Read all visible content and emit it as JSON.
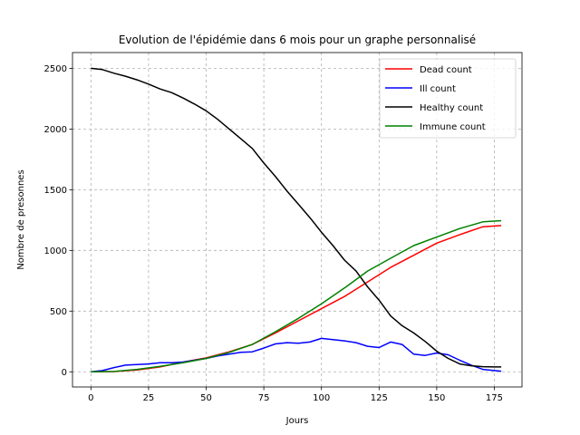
{
  "chart_data": {
    "type": "line",
    "title": "Evolution de l'épidémie dans 6 mois pour un graphe personnalisé",
    "xlabel": "Jours",
    "ylabel": "Nombre de presonnes",
    "xlim": [
      -8,
      187
    ],
    "ylim": [
      -125,
      2630
    ],
    "xticks": [
      0,
      25,
      50,
      75,
      100,
      125,
      150,
      175
    ],
    "yticks": [
      0,
      500,
      1000,
      1500,
      2000,
      2500
    ],
    "grid": true,
    "legend_position": "top-right",
    "series": [
      {
        "name": "Dead count",
        "color": "#ff0000",
        "points": [
          [
            0,
            0
          ],
          [
            10,
            2
          ],
          [
            20,
            15
          ],
          [
            30,
            40
          ],
          [
            40,
            80
          ],
          [
            50,
            115
          ],
          [
            60,
            165
          ],
          [
            70,
            225
          ],
          [
            80,
            320
          ],
          [
            90,
            420
          ],
          [
            100,
            520
          ],
          [
            110,
            620
          ],
          [
            120,
            740
          ],
          [
            130,
            860
          ],
          [
            140,
            960
          ],
          [
            150,
            1060
          ],
          [
            160,
            1130
          ],
          [
            170,
            1195
          ],
          [
            178,
            1205
          ]
        ]
      },
      {
        "name": "Ill count",
        "color": "#0000ff",
        "points": [
          [
            0,
            0
          ],
          [
            5,
            10
          ],
          [
            10,
            35
          ],
          [
            15,
            55
          ],
          [
            20,
            60
          ],
          [
            25,
            65
          ],
          [
            30,
            75
          ],
          [
            35,
            75
          ],
          [
            40,
            80
          ],
          [
            45,
            95
          ],
          [
            50,
            110
          ],
          [
            55,
            130
          ],
          [
            60,
            145
          ],
          [
            65,
            160
          ],
          [
            70,
            165
          ],
          [
            75,
            195
          ],
          [
            80,
            230
          ],
          [
            85,
            240
          ],
          [
            90,
            235
          ],
          [
            95,
            245
          ],
          [
            100,
            275
          ],
          [
            105,
            265
          ],
          [
            110,
            255
          ],
          [
            115,
            240
          ],
          [
            120,
            210
          ],
          [
            125,
            200
          ],
          [
            130,
            245
          ],
          [
            135,
            225
          ],
          [
            140,
            145
          ],
          [
            145,
            135
          ],
          [
            150,
            155
          ],
          [
            155,
            140
          ],
          [
            160,
            95
          ],
          [
            165,
            55
          ],
          [
            170,
            20
          ],
          [
            175,
            10
          ],
          [
            178,
            5
          ]
        ]
      },
      {
        "name": "Healthy count",
        "color": "#000000",
        "points": [
          [
            0,
            2500
          ],
          [
            5,
            2490
          ],
          [
            10,
            2460
          ],
          [
            15,
            2435
          ],
          [
            20,
            2405
          ],
          [
            25,
            2370
          ],
          [
            30,
            2330
          ],
          [
            35,
            2300
          ],
          [
            40,
            2255
          ],
          [
            45,
            2205
          ],
          [
            50,
            2150
          ],
          [
            55,
            2080
          ],
          [
            60,
            2000
          ],
          [
            65,
            1920
          ],
          [
            70,
            1840
          ],
          [
            75,
            1720
          ],
          [
            80,
            1610
          ],
          [
            85,
            1490
          ],
          [
            90,
            1380
          ],
          [
            95,
            1270
          ],
          [
            100,
            1150
          ],
          [
            105,
            1040
          ],
          [
            110,
            920
          ],
          [
            115,
            830
          ],
          [
            120,
            700
          ],
          [
            125,
            590
          ],
          [
            130,
            460
          ],
          [
            135,
            380
          ],
          [
            140,
            320
          ],
          [
            145,
            250
          ],
          [
            150,
            170
          ],
          [
            155,
            110
          ],
          [
            160,
            65
          ],
          [
            165,
            50
          ],
          [
            170,
            42
          ],
          [
            175,
            40
          ],
          [
            178,
            40
          ]
        ]
      },
      {
        "name": "Immune count",
        "color": "#008000",
        "points": [
          [
            0,
            0
          ],
          [
            10,
            3
          ],
          [
            20,
            20
          ],
          [
            30,
            45
          ],
          [
            40,
            75
          ],
          [
            50,
            110
          ],
          [
            60,
            160
          ],
          [
            70,
            225
          ],
          [
            80,
            330
          ],
          [
            90,
            440
          ],
          [
            100,
            560
          ],
          [
            110,
            690
          ],
          [
            120,
            830
          ],
          [
            130,
            935
          ],
          [
            140,
            1040
          ],
          [
            150,
            1110
          ],
          [
            160,
            1180
          ],
          [
            170,
            1235
          ],
          [
            178,
            1245
          ]
        ]
      }
    ]
  }
}
